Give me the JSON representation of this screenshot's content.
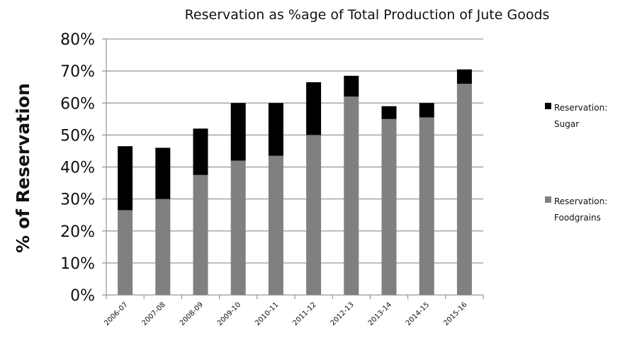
{
  "chart_data": {
    "type": "bar",
    "stacked": true,
    "title": "Reservation as %age of Total Production of Jute Goods",
    "xlabel": "",
    "ylabel": "% of Reservation",
    "ylim": [
      0,
      80
    ],
    "y_ticks": [
      "0%",
      "10%",
      "20%",
      "30%",
      "40%",
      "50%",
      "60%",
      "70%",
      "80%"
    ],
    "grid": true,
    "legend_position": "right",
    "categories": [
      "2006-07",
      "2007-08",
      "2008-09",
      "2009-10",
      "2010-11",
      "2011-12",
      "2012-13",
      "2013-14",
      "2014-15",
      "2015-16"
    ],
    "series": [
      {
        "name": "Reservation: Foodgrains",
        "color": "#808080",
        "values": [
          26.5,
          30,
          37.5,
          42,
          43.5,
          50,
          62,
          55,
          55.5,
          66
        ]
      },
      {
        "name": "Reservation: Sugar",
        "color": "#000000",
        "values": [
          20,
          16,
          14.5,
          18,
          16.5,
          16.5,
          6.5,
          4,
          4.5,
          4.5
        ]
      }
    ],
    "legend": [
      {
        "lines": [
          "Reservation:",
          "Sugar"
        ],
        "color": "#000000"
      },
      {
        "lines": [
          "Reservation:",
          "Foodgrains"
        ],
        "color": "#808080"
      }
    ]
  }
}
